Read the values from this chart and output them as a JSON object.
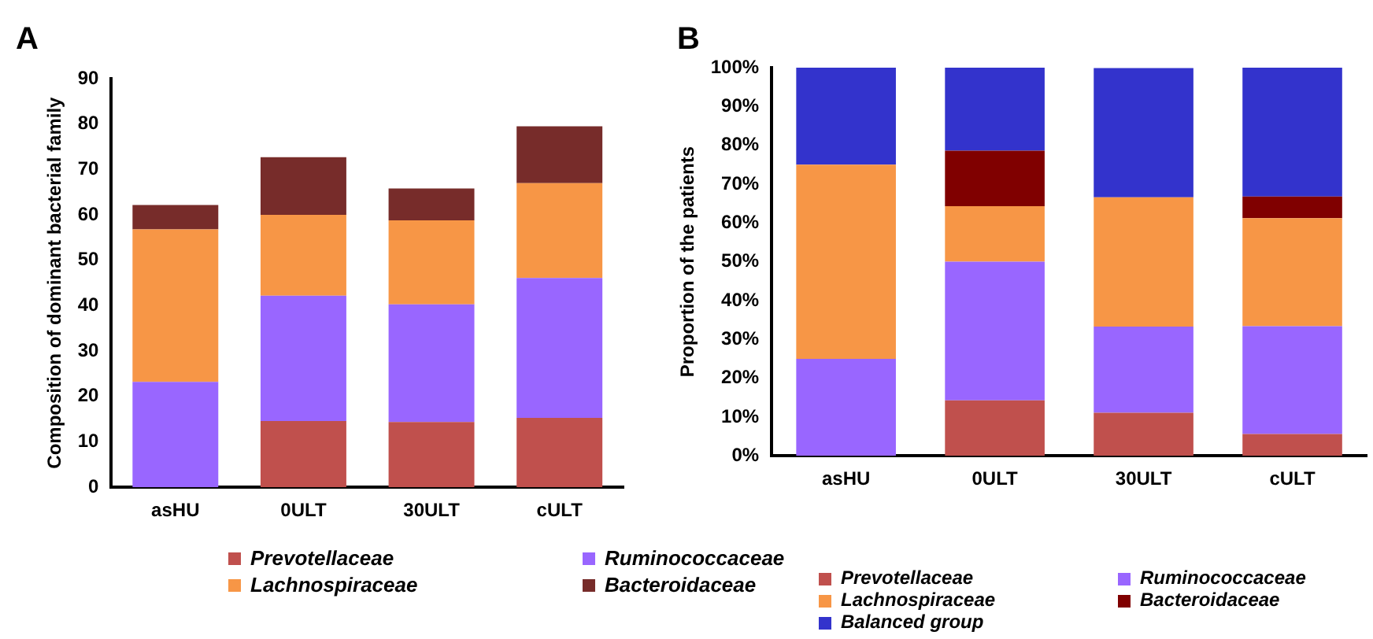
{
  "chart_data": [
    {
      "type": "bar",
      "title": "A",
      "ylabel": "Composition of dominant bacterial family",
      "categories": [
        "asHU",
        "0ULT",
        "30ULT",
        "cULT"
      ],
      "stacked": true,
      "ylim": [
        0,
        90
      ],
      "yticks": [
        0,
        10,
        20,
        30,
        40,
        50,
        60,
        70,
        80,
        90
      ],
      "grid": false,
      "legend": "bottom",
      "series": [
        {
          "name": "Prevotellaceae",
          "color": "#c0504d",
          "values": [
            0,
            14.6,
            14.4,
            15.3
          ]
        },
        {
          "name": "Ruminococcaceae",
          "color": "#9966ff",
          "values": [
            23.2,
            27.6,
            25.9,
            30.8
          ]
        },
        {
          "name": "Lachnospiraceae",
          "color": "#f79646",
          "values": [
            33.6,
            17.8,
            18.5,
            20.9
          ]
        },
        {
          "name": "Bacteroidaceae",
          "color": "#772c2a",
          "values": [
            5.4,
            12.7,
            7,
            12.5
          ]
        }
      ]
    },
    {
      "type": "bar",
      "title": "B",
      "ylabel": "Proportion of the patients",
      "categories": [
        "asHU",
        "0ULT",
        "30ULT",
        "cULT"
      ],
      "stacked": true,
      "ylim": [
        0,
        100
      ],
      "yticks": [
        {
          "value": 0,
          "label": "0%"
        },
        {
          "value": 10,
          "label": "10%"
        },
        {
          "value": 20,
          "label": "20%"
        },
        {
          "value": 30,
          "label": "30%"
        },
        {
          "value": 40,
          "label": "40%"
        },
        {
          "value": 50,
          "label": "50%"
        },
        {
          "value": 60,
          "label": "60%"
        },
        {
          "value": 70,
          "label": "70%"
        },
        {
          "value": 80,
          "label": "80%"
        },
        {
          "value": 90,
          "label": "90%"
        },
        {
          "value": 100,
          "label": "100%"
        }
      ],
      "grid": false,
      "legend": "bottom",
      "series": [
        {
          "name": "Prevotellaceae",
          "color": "#c0504d",
          "values": [
            0,
            14.3,
            11.1,
            5.6
          ]
        },
        {
          "name": "Ruminococcaceae",
          "color": "#9966ff",
          "values": [
            25,
            35.7,
            22.2,
            27.8
          ]
        },
        {
          "name": "Lachnospiraceae",
          "color": "#f79646",
          "values": [
            50,
            14.3,
            33.3,
            27.8
          ]
        },
        {
          "name": "Bacteroidaceae",
          "color": "#800000",
          "values": [
            0,
            14.3,
            0,
            5.6
          ]
        },
        {
          "name": "Balanced group",
          "color": "#3333cc",
          "values": [
            25,
            21.4,
            33.3,
            33.3
          ]
        }
      ]
    }
  ]
}
